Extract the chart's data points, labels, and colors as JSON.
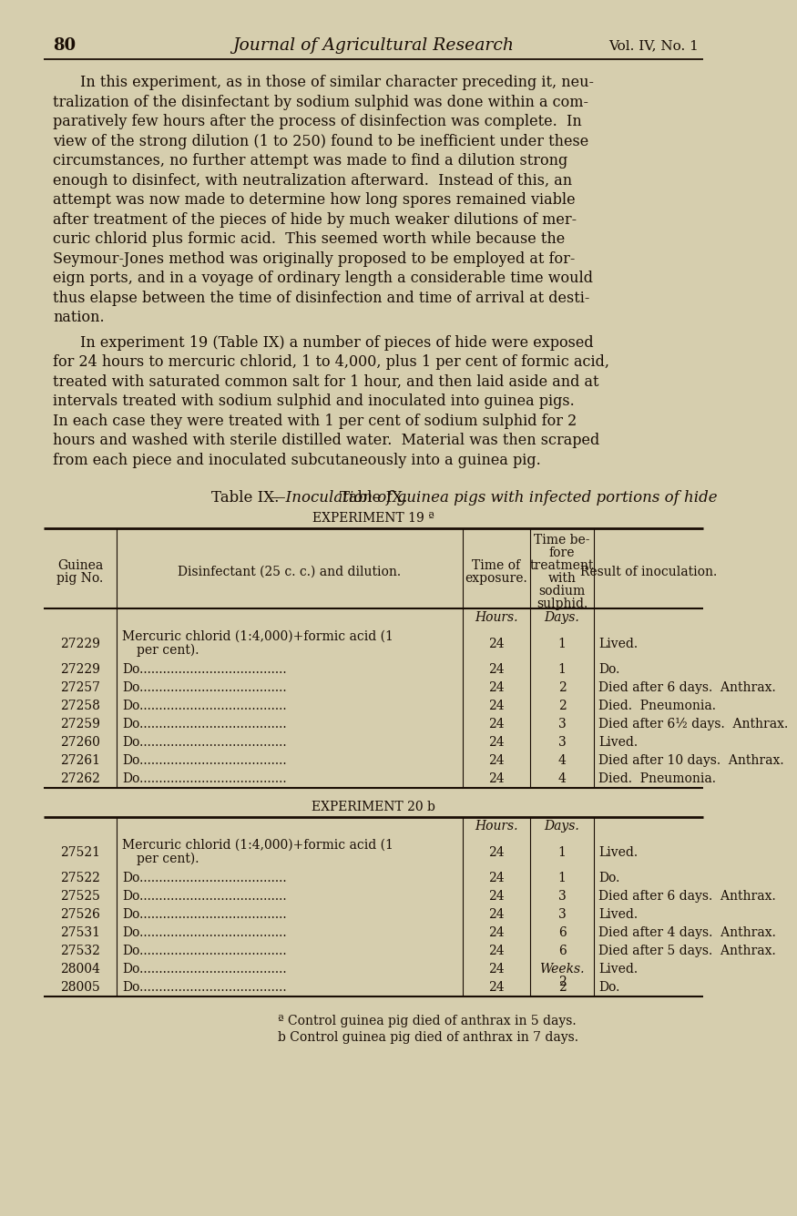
{
  "bg_color": "#d6ceae",
  "text_color": "#1a0e05",
  "page_number": "80",
  "journal_title": "Journal of Agricultural Research",
  "vol_info": "Vol. IV, No. 1",
  "table_title_small": "Table IX.",
  "table_title_italic": "—Inoculation of guinea pigs with infected portions of hide",
  "exp19_label": "EXPERIMENT 19 ª",
  "exp20_label": "EXPERIMENT 20 b",
  "col_headers": [
    "Guinea\npig No.",
    "Disinfectant (25 c. c.) and dilution.",
    "Time of\nexposure.",
    "Time be-\nfore\ntreatment\nwith\nsodium\nsulphid.",
    "Result of inoculation."
  ],
  "exp19_rows": [
    [
      "27229",
      "Mercuric chlorid (1:4,000)+formic acid (1",
      "24",
      "1",
      "Lived.",
      "per cent)."
    ],
    [
      "27229",
      "Do......................................",
      "24",
      "1",
      "Do.",
      ""
    ],
    [
      "27257",
      "Do......................................",
      "24",
      "2",
      "Died after 6 days.  Anthrax.",
      ""
    ],
    [
      "27258",
      "Do......................................",
      "24",
      "2",
      "Died.  Pneumonia.",
      ""
    ],
    [
      "27259",
      "Do......................................",
      "24",
      "3",
      "Died after 6½ days.  Anthrax.",
      ""
    ],
    [
      "27260",
      "Do......................................",
      "24",
      "3",
      "Lived.",
      ""
    ],
    [
      "27261",
      "Do......................................",
      "24",
      "4",
      "Died after 10 days.  Anthrax.",
      ""
    ],
    [
      "27262",
      "Do......................................",
      "24",
      "4",
      "Died.  Pneumonia.",
      ""
    ]
  ],
  "exp20_rows": [
    [
      "27521",
      "Mercuric chlorid (1:4,000)+formic acid (1",
      "24",
      "1",
      "Lived.",
      "per cent)."
    ],
    [
      "27522",
      "Do......................................",
      "24",
      "1",
      "Do.",
      ""
    ],
    [
      "27525",
      "Do......................................",
      "24",
      "3",
      "Died after 6 days.  Anthrax.",
      ""
    ],
    [
      "27526",
      "Do......................................",
      "24",
      "3",
      "Lived.",
      ""
    ],
    [
      "27531",
      "Do......................................",
      "24",
      "6",
      "Died after 4 days.  Anthrax.",
      ""
    ],
    [
      "27532",
      "Do......................................",
      "24",
      "6",
      "Died after 5 days.  Anthrax.",
      ""
    ],
    [
      "28004",
      "Do......................................",
      "24",
      "2",
      "Lived.",
      ""
    ],
    [
      "28005",
      "Do......................................",
      "24",
      "2",
      "Do.",
      ""
    ]
  ],
  "footnotes": [
    "ª Control guinea pig died of anthrax in 5 days.",
    "b Control guinea pig died of anthrax in 7 days."
  ],
  "para1_lines": [
    "In this experiment, as in those of similar character preceding it, neu­",
    "tralization of the disinfectant by sodium sulphid was done within a com­",
    "paratively few hours after the process of disinfection was complete.  In",
    "view of the strong dilution (1 to 250) found to be inefficient under these",
    "circumstances, no further attempt was made to find a dilution strong",
    "enough to disinfect, with neutralization afterward.  Instead of this, an",
    "attempt was now made to determine how long spores remained viable",
    "after treatment of the pieces of hide by much weaker dilutions of mer­",
    "curic chlorid plus formic acid.  This seemed worth while because the",
    "Seymour-Jones method was originally proposed to be employed at for­",
    "eign ports, and in a voyage of ordinary length a considerable time would",
    "thus elapse between the time of disinfection and time of arrival at desti­",
    "nation."
  ],
  "para2_lines": [
    "In experiment 19 (Table IX) a number of pieces of hide were exposed",
    "for 24 hours to mercuric chlorid, 1 to 4,000, plus 1 per cent of formic acid,",
    "treated with saturated common salt for 1 hour, and then laid aside and at",
    "intervals treated with sodium sulphid and inoculated into guinea pigs.",
    "In each case they were treated with 1 per cent of sodium sulphid for 2",
    "hours and washed with sterile distilled water.  Material was then scraped",
    "from each piece and inoculated subcutaneously into a guinea pig."
  ]
}
